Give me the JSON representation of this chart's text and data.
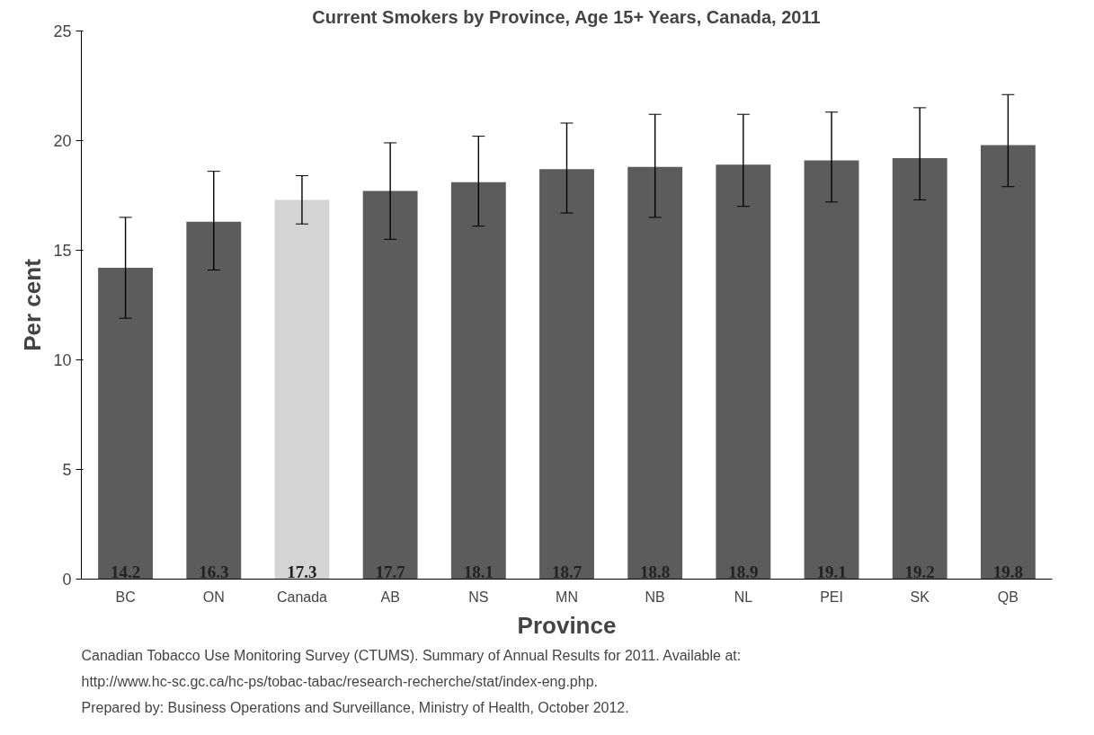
{
  "chart_data": {
    "type": "bar",
    "title": "Current Smokers by Province, Age 15+ Years, Canada, 2011",
    "xlabel": "Province",
    "ylabel": "Per cent",
    "categories": [
      "BC",
      "ON",
      "Canada",
      "AB",
      "NS",
      "MN",
      "NB",
      "NL",
      "PEI",
      "SK",
      "QB"
    ],
    "values": [
      14.2,
      16.3,
      17.3,
      17.7,
      18.1,
      18.7,
      18.8,
      18.9,
      19.1,
      19.2,
      19.8
    ],
    "colors": [
      "#5c5c5c",
      "#5c5c5c",
      "#d4d4d4",
      "#5c5c5c",
      "#5c5c5c",
      "#5c5c5c",
      "#5c5c5c",
      "#5c5c5c",
      "#5c5c5c",
      "#5c5c5c",
      "#5c5c5c"
    ],
    "errors": [
      [
        11.9,
        16.5
      ],
      [
        14.1,
        18.6
      ],
      [
        16.2,
        18.4
      ],
      [
        15.5,
        19.9
      ],
      [
        16.1,
        20.2
      ],
      [
        16.7,
        20.8
      ],
      [
        16.5,
        21.2
      ],
      [
        17.0,
        21.2
      ],
      [
        17.2,
        21.3
      ],
      [
        17.3,
        21.5
      ],
      [
        17.9,
        22.1
      ]
    ],
    "ylim": [
      0,
      25
    ],
    "yticks": [
      0,
      5,
      10,
      15,
      20,
      25
    ],
    "grid": false,
    "data_labels": true,
    "annotations": [
      "Canadian Tobacco Use Monitoring Survey (CTUMS).  Summary of Annual Results for 2011.  Available at:",
      "http://www.hc-sc.gc.ca/hc-ps/tobac-tabac/research-recherche/stat/index-eng.php.",
      "Prepared by:  Business Operations and Surveillance, Ministry of Health, October 2012."
    ]
  }
}
